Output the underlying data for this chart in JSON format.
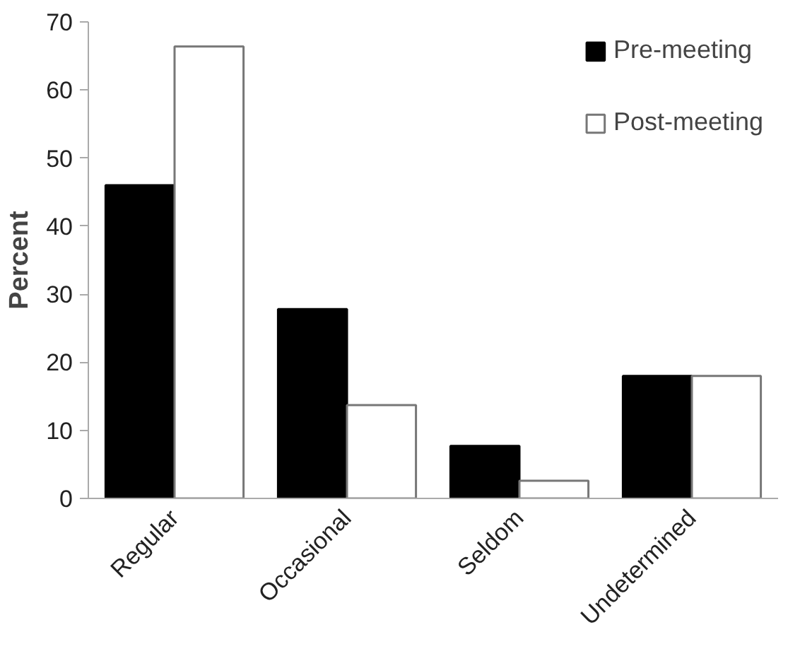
{
  "chart_data": {
    "type": "bar",
    "ylabel": "Percent",
    "categories": [
      "Regular",
      "Occasional",
      "Seldom",
      "Undetermined"
    ],
    "series": [
      {
        "name": "Pre-meeting",
        "color": "#000000",
        "values": [
          46,
          27.8,
          7.7,
          18
        ]
      },
      {
        "name": "Post-meeting",
        "color": "#ffffff",
        "values": [
          66.4,
          13.7,
          2.6,
          18
        ]
      }
    ],
    "ylim": [
      0,
      70
    ],
    "yticks": [
      0,
      10,
      20,
      30,
      40,
      50,
      60,
      70
    ],
    "grid": false,
    "legend": "top right"
  }
}
